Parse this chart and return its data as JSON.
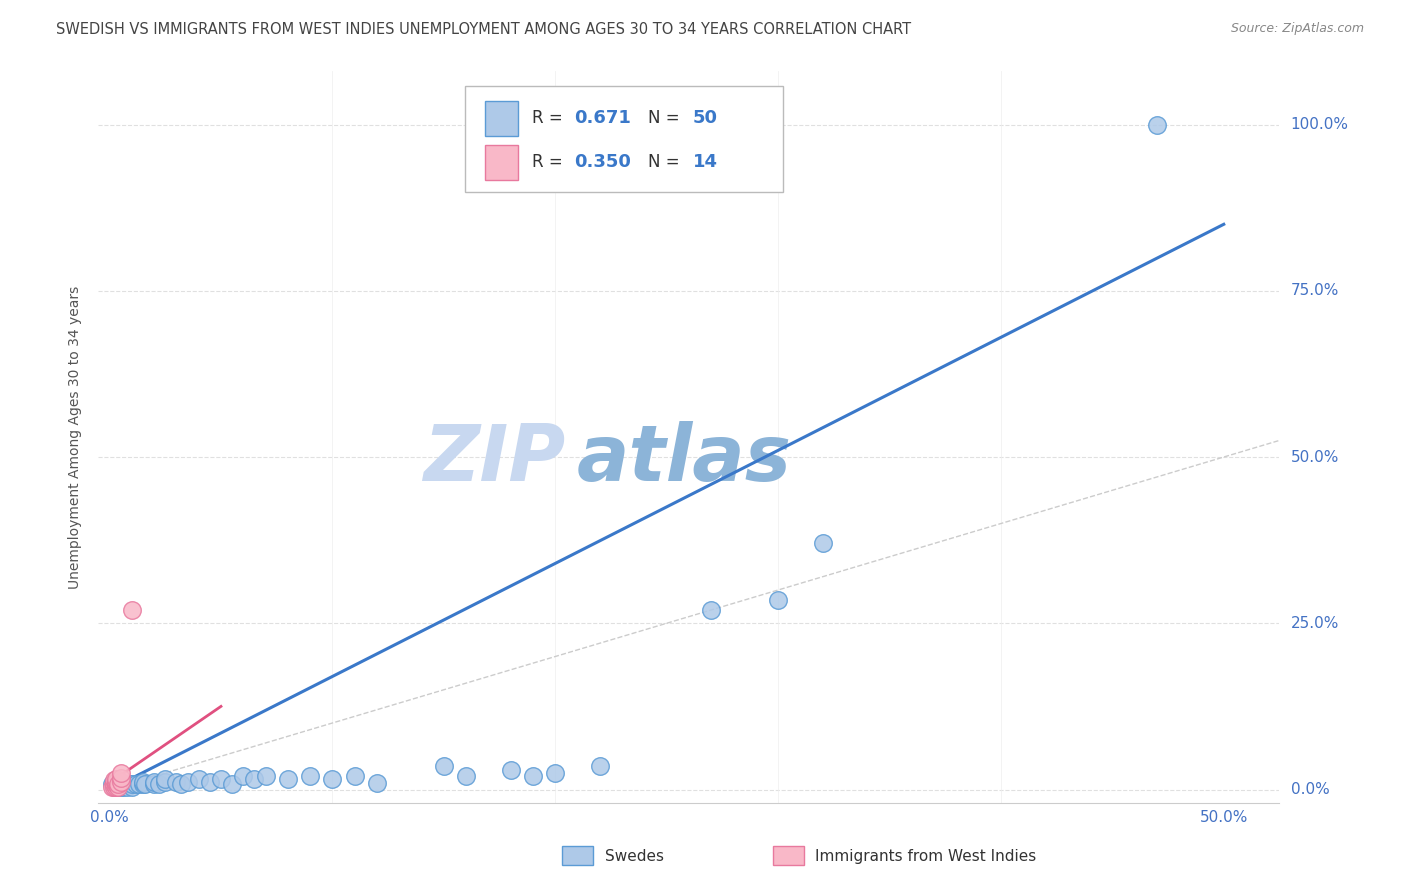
{
  "title": "SWEDISH VS IMMIGRANTS FROM WEST INDIES UNEMPLOYMENT AMONG AGES 30 TO 34 YEARS CORRELATION CHART",
  "source": "Source: ZipAtlas.com",
  "xlabel_show": [
    "0.0%",
    "50.0%"
  ],
  "xlabel_show_vals": [
    0.0,
    0.5
  ],
  "ylabel": "Unemployment Among Ages 30 to 34 years",
  "ylabel_ticks": [
    "0.0%",
    "25.0%",
    "50.0%",
    "75.0%",
    "100.0%"
  ],
  "ylabel_tick_vals": [
    0.0,
    0.25,
    0.5,
    0.75,
    1.0
  ],
  "ylim": [
    -0.02,
    1.08
  ],
  "xlim": [
    -0.005,
    0.525
  ],
  "legend_r_blue": "0.671",
  "legend_n_blue": "50",
  "legend_r_pink": "0.350",
  "legend_n_pink": "14",
  "blue_scatter": [
    [
      0.001,
      0.008
    ],
    [
      0.002,
      0.004
    ],
    [
      0.002,
      0.008
    ],
    [
      0.003,
      0.004
    ],
    [
      0.003,
      0.008
    ],
    [
      0.004,
      0.004
    ],
    [
      0.004,
      0.008
    ],
    [
      0.005,
      0.004
    ],
    [
      0.005,
      0.008
    ],
    [
      0.006,
      0.004
    ],
    [
      0.007,
      0.008
    ],
    [
      0.008,
      0.004
    ],
    [
      0.009,
      0.008
    ],
    [
      0.01,
      0.004
    ],
    [
      0.01,
      0.008
    ],
    [
      0.012,
      0.008
    ],
    [
      0.013,
      0.008
    ],
    [
      0.015,
      0.008
    ],
    [
      0.015,
      0.012
    ],
    [
      0.016,
      0.008
    ],
    [
      0.02,
      0.008
    ],
    [
      0.02,
      0.012
    ],
    [
      0.022,
      0.008
    ],
    [
      0.025,
      0.012
    ],
    [
      0.025,
      0.016
    ],
    [
      0.03,
      0.012
    ],
    [
      0.032,
      0.008
    ],
    [
      0.035,
      0.012
    ],
    [
      0.04,
      0.016
    ],
    [
      0.045,
      0.012
    ],
    [
      0.05,
      0.016
    ],
    [
      0.055,
      0.008
    ],
    [
      0.06,
      0.02
    ],
    [
      0.065,
      0.016
    ],
    [
      0.07,
      0.02
    ],
    [
      0.08,
      0.016
    ],
    [
      0.09,
      0.02
    ],
    [
      0.1,
      0.016
    ],
    [
      0.11,
      0.02
    ],
    [
      0.12,
      0.01
    ],
    [
      0.15,
      0.035
    ],
    [
      0.16,
      0.02
    ],
    [
      0.18,
      0.03
    ],
    [
      0.19,
      0.02
    ],
    [
      0.2,
      0.025
    ],
    [
      0.22,
      0.035
    ],
    [
      0.27,
      0.27
    ],
    [
      0.3,
      0.285
    ],
    [
      0.32,
      0.37
    ],
    [
      0.47,
      1.0
    ]
  ],
  "pink_scatter": [
    [
      0.001,
      0.004
    ],
    [
      0.002,
      0.004
    ],
    [
      0.002,
      0.008
    ],
    [
      0.002,
      0.014
    ],
    [
      0.003,
      0.004
    ],
    [
      0.003,
      0.008
    ],
    [
      0.003,
      0.012
    ],
    [
      0.003,
      0.016
    ],
    [
      0.004,
      0.004
    ],
    [
      0.004,
      0.008
    ],
    [
      0.005,
      0.012
    ],
    [
      0.005,
      0.018
    ],
    [
      0.005,
      0.025
    ],
    [
      0.01,
      0.27
    ]
  ],
  "blue_line_x": [
    0.0,
    0.5
  ],
  "blue_line_y": [
    0.0,
    0.85
  ],
  "pink_line_x": [
    0.0,
    0.05
  ],
  "pink_line_y": [
    0.01,
    0.125
  ],
  "diag_line_x": [
    0.0,
    0.525
  ],
  "diag_line_y": [
    0.0,
    0.525
  ],
  "blue_fill_color": "#aec9e8",
  "pink_fill_color": "#f9b8c8",
  "blue_edge_color": "#5b9bd5",
  "pink_edge_color": "#e8799e",
  "blue_line_color": "#3a78c9",
  "pink_line_color": "#e05080",
  "diag_color": "#cccccc",
  "grid_color": "#e0e0e0",
  "watermark_zip_color": "#c8d8f0",
  "watermark_atlas_color": "#8cb4d8",
  "title_color": "#444444",
  "source_color": "#888888",
  "tick_color": "#4472c4",
  "ylabel_color": "#555555"
}
